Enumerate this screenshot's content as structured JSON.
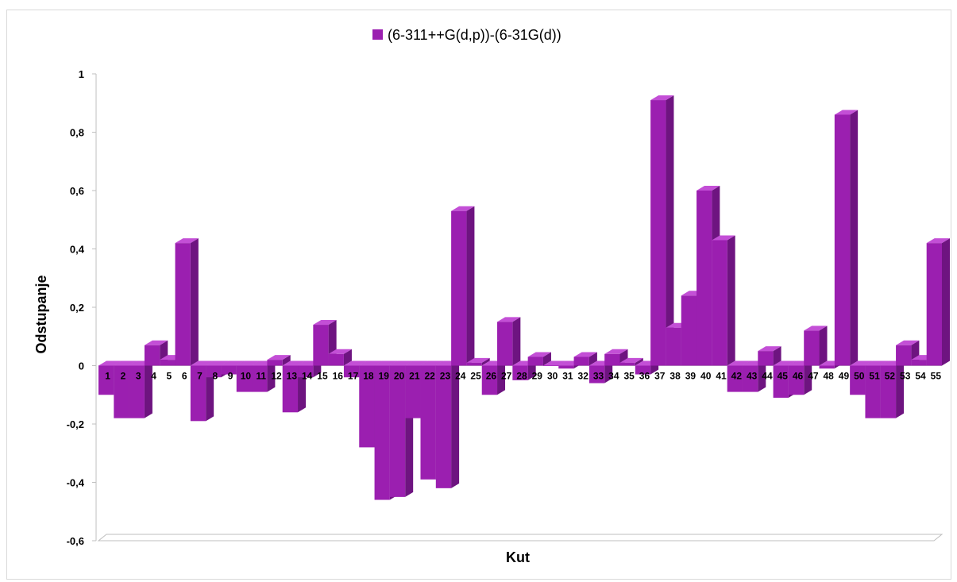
{
  "chart_data": {
    "type": "bar",
    "title": "",
    "xlabel": "Kut",
    "ylabel": "Odstupanje",
    "ylim": [
      -0.6,
      1
    ],
    "yticks": [
      -0.6,
      -0.4,
      -0.2,
      0,
      0.2,
      0.4,
      0.6,
      0.8,
      1
    ],
    "ytick_labels": [
      "-0,6",
      "-0,4",
      "-0,2",
      "0",
      "0,2",
      "0,4",
      "0,6",
      "0,8",
      "1"
    ],
    "grid": false,
    "legend": "top",
    "categories": [
      "1",
      "2",
      "3",
      "4",
      "5",
      "6",
      "7",
      "8",
      "9",
      "10",
      "11",
      "12",
      "13",
      "14",
      "15",
      "16",
      "17",
      "18",
      "19",
      "20",
      "21",
      "22",
      "23",
      "24",
      "25",
      "26",
      "27",
      "28",
      "29",
      "30",
      "31",
      "32",
      "33",
      "34",
      "35",
      "36",
      "37",
      "38",
      "39",
      "40",
      "41",
      "42",
      "43",
      "44",
      "45",
      "46",
      "47",
      "48",
      "49",
      "50",
      "51",
      "52",
      "53",
      "54",
      "55"
    ],
    "series": [
      {
        "name": "(6-311++G(d,p))-(6-31G(d))",
        "color": "#9b1fb0",
        "values": [
          -0.1,
          -0.18,
          -0.18,
          0.07,
          0.02,
          0.42,
          -0.19,
          -0.04,
          -0.03,
          -0.09,
          -0.09,
          0.02,
          -0.16,
          -0.04,
          0.14,
          0.04,
          -0.04,
          -0.28,
          -0.46,
          -0.45,
          -0.18,
          -0.39,
          -0.42,
          0.53,
          0.01,
          -0.1,
          0.15,
          -0.05,
          0.03,
          0.0,
          -0.01,
          0.03,
          -0.06,
          0.04,
          0.01,
          -0.03,
          0.91,
          0.13,
          0.24,
          0.6,
          0.43,
          -0.09,
          -0.09,
          0.05,
          -0.11,
          -0.1,
          0.12,
          -0.01,
          0.86,
          -0.1,
          -0.18,
          -0.18,
          0.07,
          0.02,
          0.42
        ]
      }
    ]
  }
}
